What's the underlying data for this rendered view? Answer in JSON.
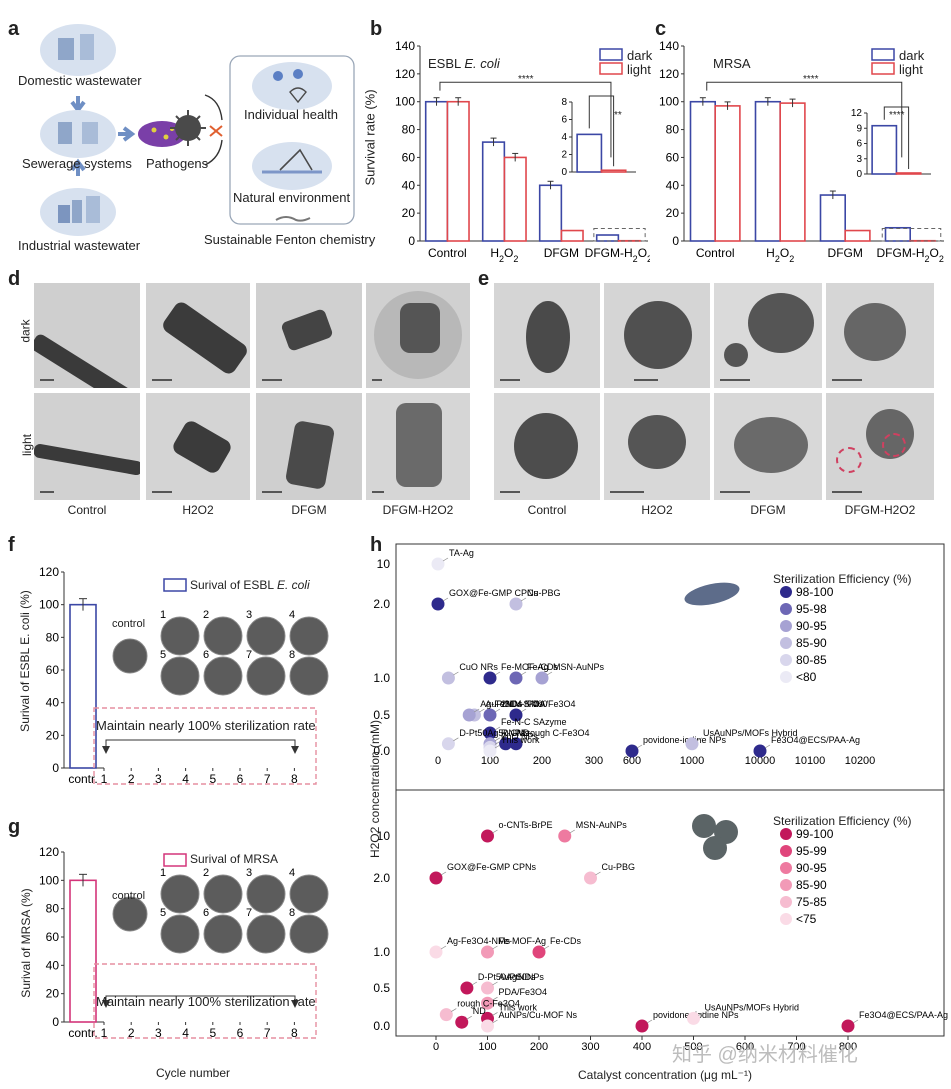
{
  "panels": {
    "a": "a",
    "b": "b",
    "c": "c",
    "d": "d",
    "e": "e",
    "f": "f",
    "g": "g",
    "h": "h"
  },
  "panel_a": {
    "domestic": "Domestic wastewater",
    "sewerage": "Sewerage systems",
    "industrial": "Industrial wastewater",
    "pathogens": "Pathogens",
    "individual": "Individual health",
    "natural": "Natural environment",
    "fenton": "Sustainable Fenton chemistry"
  },
  "panel_b": {
    "title_prefix": "ESBL ",
    "title_species": "E. coli",
    "legend_dark": "dark",
    "legend_light": "light",
    "ylabel": "Survival rate (%)",
    "sig_main": "****",
    "sig_inset": "**"
  },
  "panel_c": {
    "title": "MRSA",
    "legend_dark": "dark",
    "legend_light": "light",
    "sig_main": "****",
    "sig_inset": "****"
  },
  "panel_d": {
    "row_dark": "dark",
    "row_light": "light",
    "captions": [
      "Control",
      "H2O2",
      "DFGM",
      "DFGM-H2O2"
    ]
  },
  "panel_e": {
    "captions": [
      "Control",
      "H2O2",
      "DFGM",
      "DFGM-H2O2"
    ]
  },
  "panel_f": {
    "legend": "Surival of ESBL ",
    "legend_species": "E. coli",
    "ylabel": "Surival of ESBL E. coli (%)",
    "control": "control",
    "plate_numbers": [
      "1",
      "2",
      "3",
      "4",
      "5",
      "6",
      "7",
      "8"
    ],
    "maintain": "Maintain nearly 100% sterilization rate",
    "xticks": [
      "contr.",
      "1",
      "2",
      "3",
      "4",
      "5",
      "6",
      "7",
      "8"
    ]
  },
  "panel_g": {
    "legend": "Surival of MRSA",
    "ylabel": "Surival of MRSA (%)",
    "control": "control",
    "plate_numbers": [
      "1",
      "2",
      "3",
      "4",
      "5",
      "6",
      "7",
      "8"
    ],
    "maintain": "Maintain nearly 100% sterilization rate",
    "xticks": [
      "contr.",
      "1",
      "2",
      "3",
      "4",
      "5",
      "6",
      "7",
      "8"
    ],
    "xlabel": "Cycle number"
  },
  "panel_h": {
    "ylabel": "H2O2 concentration (mM)",
    "xlabel": "Catalyst concentration (μg mL⁻¹)",
    "top_legend_title": "Sterilization Efficiency (%)",
    "top_legend": [
      "98-100",
      "95-98",
      "90-95",
      "85-90",
      "80-85",
      "<80"
    ],
    "bottom_legend_title": "Sterilization Efficiency (%)",
    "bottom_legend": [
      "99-100",
      "95-99",
      "90-95",
      "85-90",
      "75-85",
      "<75"
    ],
    "top_xticks": [
      "0",
      "100",
      "200",
      "300",
      "600",
      "1000",
      "10000",
      "10100",
      "10200"
    ],
    "bottom_xticks": [
      "0",
      "100",
      "200",
      "300",
      "400",
      "500",
      "600",
      "700",
      "800"
    ]
  },
  "watermark": "知乎 @纳米材料催化",
  "colors": {
    "dark": "#3b47a5",
    "light": "#e0474c",
    "pink": "#d4357a",
    "dash": "#e58fa0"
  },
  "chart_data": [
    {
      "id": "b",
      "type": "bar",
      "title": "ESBL E. coli",
      "categories": [
        "Control",
        "H2O2",
        "DFGM",
        "DFGM-H2O2"
      ],
      "series": [
        {
          "name": "dark",
          "values": [
            100,
            71,
            40,
            4.3
          ]
        },
        {
          "name": "light",
          "values": [
            100,
            60,
            7.5,
            0.2
          ]
        }
      ],
      "ylabel": "Survival rate (%)",
      "ylim": [
        0,
        140
      ],
      "yticks": [
        0,
        20,
        40,
        60,
        80,
        100,
        120,
        140
      ],
      "inset": {
        "ylim": [
          0,
          8
        ],
        "yticks": [
          0,
          2,
          4,
          6,
          8
        ],
        "dark": 4.3,
        "light": 0.2
      }
    },
    {
      "id": "c",
      "type": "bar",
      "title": "MRSA",
      "categories": [
        "Control",
        "H2O2",
        "DFGM",
        "DFGM-H2O2"
      ],
      "series": [
        {
          "name": "dark",
          "values": [
            100,
            100,
            33,
            9.5
          ]
        },
        {
          "name": "light",
          "values": [
            97,
            99,
            7.5,
            0.2
          ]
        }
      ],
      "ylim": [
        0,
        140
      ],
      "yticks": [
        0,
        20,
        40,
        60,
        80,
        100,
        120,
        140
      ],
      "inset": {
        "ylim": [
          0,
          12
        ],
        "yticks": [
          0,
          3,
          6,
          9,
          12
        ],
        "dark": 9.5,
        "light": 0.2
      }
    },
    {
      "id": "f",
      "type": "bar",
      "categories": [
        "contr."
      ],
      "values": [
        100
      ],
      "ylim": [
        0,
        120
      ],
      "yticks": [
        0,
        20,
        40,
        60,
        80,
        100,
        120
      ]
    },
    {
      "id": "g",
      "type": "bar",
      "categories": [
        "contr."
      ],
      "values": [
        100
      ],
      "ylim": [
        0,
        120
      ],
      "yticks": [
        0,
        20,
        40,
        60,
        80,
        100,
        120
      ]
    },
    {
      "id": "h-top",
      "type": "scatter",
      "yticks": [
        "0.0",
        "0.5",
        "1.0",
        "2.0",
        "10"
      ],
      "points": [
        {
          "label": "TA-Ag",
          "x": 0,
          "y": 10,
          "level": 5
        },
        {
          "label": "GOX@Fe-GMP CPNs",
          "x": 0,
          "y": 2.0,
          "level": 0
        },
        {
          "label": "Cu-PBG",
          "x": 150,
          "y": 2.0,
          "level": 3
        },
        {
          "label": "CuO NRs",
          "x": 20,
          "y": 1.0,
          "level": 3
        },
        {
          "label": "Fe-MOF-Ag",
          "x": 100,
          "y": 1.0,
          "level": 0
        },
        {
          "label": "Fe-CDs",
          "x": 150,
          "y": 1.0,
          "level": 1
        },
        {
          "label": "MSN-AuNPs",
          "x": 200,
          "y": 1.0,
          "level": 2
        },
        {
          "label": "AuPtNDs",
          "x": 70,
          "y": 0.5,
          "level": 3
        },
        {
          "label": "2NIV-S-400",
          "x": 100,
          "y": 0.5,
          "level": 1
        },
        {
          "label": "PDA/Fe3O4",
          "x": 150,
          "y": 0.5,
          "level": 0
        },
        {
          "label": "Ag-Fe3O4-NMs",
          "x": 60,
          "y": 0.5,
          "level": 2
        },
        {
          "label": "Fe-N-C SAzyme",
          "x": 100,
          "y": 0.25,
          "level": 0
        },
        {
          "label": "ND",
          "x": 130,
          "y": 0.1,
          "level": 0
        },
        {
          "label": "R-CMs",
          "x": 100,
          "y": 0.1,
          "level": 2
        },
        {
          "label": "rough C-Fe3O4",
          "x": 150,
          "y": 0.1,
          "level": 0
        },
        {
          "label": "ZnO NPs",
          "x": 100,
          "y": 0.05,
          "level": 4
        },
        {
          "label": "D-Pt50Ag50NPs",
          "x": 20,
          "y": 0.1,
          "level": 4
        },
        {
          "label": "This work",
          "x": 100,
          "y": 0.0,
          "level": 5
        },
        {
          "label": "povidone-iodine NPs",
          "x": 600,
          "y": 0.0,
          "level": 0
        },
        {
          "label": "UsAuNPs/MOFs Hybrid",
          "x": 1000,
          "y": 0.1,
          "level": 3
        },
        {
          "label": "Fe3O4@ECS/PAA-Ag",
          "x": 10000,
          "y": 0.0,
          "level": 0
        }
      ]
    },
    {
      "id": "h-bottom",
      "type": "scatter",
      "yticks": [
        "0.0",
        "0.5",
        "1.0",
        "2.0",
        "10"
      ],
      "xticks": [
        0,
        100,
        200,
        300,
        400,
        500,
        600,
        700,
        800
      ],
      "points": [
        {
          "label": "o-CNTs-BrPE",
          "x": 100,
          "y": 10,
          "level": 0
        },
        {
          "label": "MSN-AuNPs",
          "x": 250,
          "y": 10,
          "level": 2
        },
        {
          "label": "GOX@Fe-GMP CPNs",
          "x": 0,
          "y": 2.0,
          "level": 0
        },
        {
          "label": "Cu-PBG",
          "x": 300,
          "y": 2.0,
          "level": 4
        },
        {
          "label": "Ag-Fe3O4-NMs",
          "x": 0,
          "y": 1.0,
          "level": 5
        },
        {
          "label": "Fe-MOF-Ag",
          "x": 100,
          "y": 1.0,
          "level": 3
        },
        {
          "label": "Fe-CDs",
          "x": 200,
          "y": 1.0,
          "level": 1
        },
        {
          "label": "AuPtNDs",
          "x": 100,
          "y": 0.5,
          "level": 4
        },
        {
          "label": "D-Pt50Ag50NPs",
          "x": 60,
          "y": 0.5,
          "level": 0
        },
        {
          "label": "PDA/Fe3O4",
          "x": 100,
          "y": 0.3,
          "level": 3
        },
        {
          "label": "This work",
          "x": 100,
          "y": 0.1,
          "level": 0
        },
        {
          "label": "ND",
          "x": 50,
          "y": 0.05,
          "level": 0
        },
        {
          "label": "rough C-Fe3O4",
          "x": 20,
          "y": 0.15,
          "level": 4
        },
        {
          "label": "AuNPs/Cu-MOF Ns",
          "x": 100,
          "y": 0.0,
          "level": 5
        },
        {
          "label": "povidone- iodine NPs",
          "x": 400,
          "y": 0.0,
          "level": 0
        },
        {
          "label": "UsAuNPs/MOFs Hybrid",
          "x": 500,
          "y": 0.1,
          "level": 5
        },
        {
          "label": "Fe3O4@ECS/PAA-Ag",
          "x": 800,
          "y": 0.0,
          "level": 0
        }
      ]
    }
  ]
}
